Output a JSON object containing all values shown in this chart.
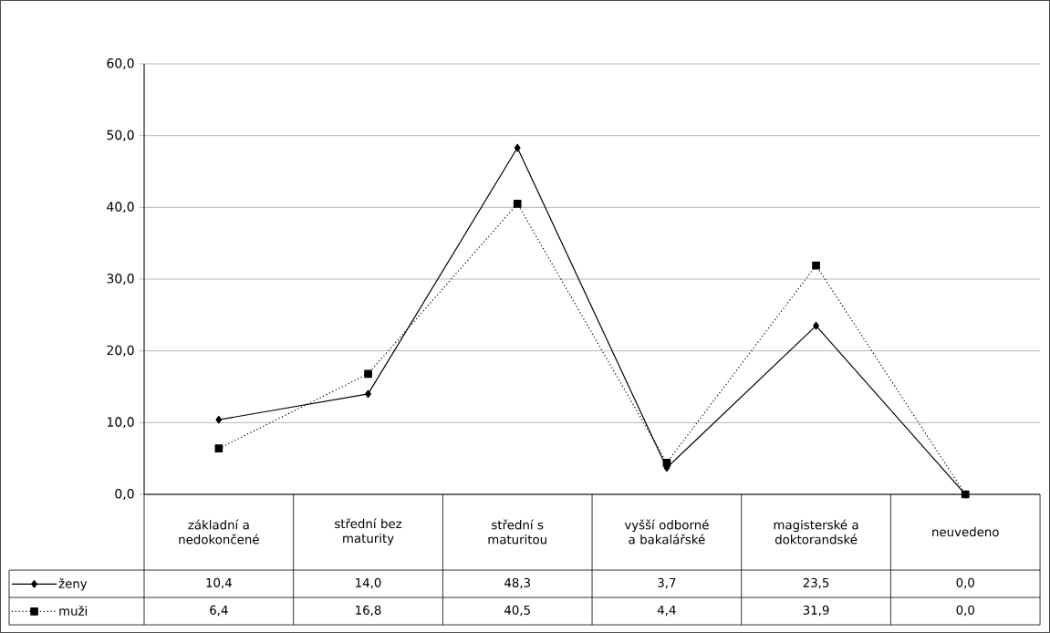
{
  "chart_data": {
    "type": "line",
    "categories": [
      "základní a nedokončené",
      "střední bez maturity",
      "střední s maturitou",
      "vyšší odborné a bakalářské",
      "magisterské a doktorandské",
      "neuvedeno"
    ],
    "series": [
      {
        "name": "ženy",
        "color": "#000000",
        "marker": "diamond",
        "line_style": "solid",
        "values": [
          10.4,
          14.0,
          48.3,
          3.7,
          23.5,
          0.0
        ],
        "value_labels": [
          "10,4",
          "14,0",
          "48,3",
          "3,7",
          "23,5",
          "0,0"
        ]
      },
      {
        "name": "muži",
        "color": "#000000",
        "marker": "square",
        "line_style": "dotted",
        "values": [
          6.4,
          16.8,
          40.5,
          4.4,
          31.9,
          0.0
        ],
        "value_labels": [
          "6,4",
          "16,8",
          "40,5",
          "4,4",
          "31,9",
          "0,0"
        ]
      }
    ],
    "ylim": [
      0,
      60
    ],
    "yticks": [
      {
        "value": 0,
        "label": "0,0"
      },
      {
        "value": 10,
        "label": "10,0"
      },
      {
        "value": 20,
        "label": "20,0"
      },
      {
        "value": 30,
        "label": "30,0"
      },
      {
        "value": 40,
        "label": "40,0"
      },
      {
        "value": 50,
        "label": "50,0"
      },
      {
        "value": 60,
        "label": "60,0"
      }
    ],
    "grid": "y",
    "legend": "bottom left"
  }
}
